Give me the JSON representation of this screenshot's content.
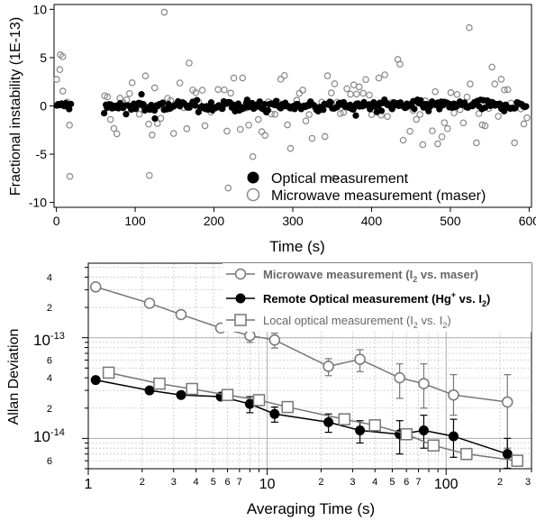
{
  "chart_data": [
    {
      "type": "scatter",
      "xlabel": "Time (s)",
      "ylabel": "Fractional instability (1E-13)",
      "xlim": [
        -3,
        603
      ],
      "ylim": [
        -10.5,
        10.5
      ],
      "x_ticks": [
        0,
        100,
        200,
        300,
        400,
        500,
        600
      ],
      "y_ticks": [
        -10,
        -5,
        0,
        5,
        10
      ],
      "grid": false,
      "legend_position": "bottom-right",
      "series": [
        {
          "name": "Optical measurement",
          "marker": "filled-circle",
          "color": "#000000",
          "segments": [
            [
              0,
              18
            ],
            [
              60,
              597
            ]
          ],
          "spacing_s": 2,
          "typical_spread": 0.5,
          "notable_points": [
            {
              "x": 108,
              "y": 1.2
            },
            {
              "x": 125,
              "y": -1.3
            },
            {
              "x": 380,
              "y": -1.0
            }
          ]
        },
        {
          "name": "Microwave measurement (maser)",
          "marker": "open-circle",
          "color": "#888888",
          "segments": [
            [
              0,
              18
            ],
            [
              60,
              597
            ]
          ],
          "spacing_s": 4,
          "typical_spread": 3.5,
          "notable_points": [
            {
              "x": 5,
              "y": 5.3
            },
            {
              "x": 8,
              "y": 5.1
            },
            {
              "x": 17,
              "y": -7.3
            },
            {
              "x": 118,
              "y": -7.2
            },
            {
              "x": 137,
              "y": 9.7
            },
            {
              "x": 218,
              "y": -8.5
            },
            {
              "x": 353,
              "y": -7.5
            },
            {
              "x": 524,
              "y": 8.1
            }
          ]
        }
      ]
    },
    {
      "type": "line",
      "xlabel": "Averaging Time (s)",
      "ylabel": "Allan Deviation",
      "x_scale": "log",
      "y_scale": "log",
      "xlim": [
        1,
        300
      ],
      "ylim": [
        5e-15,
        5.5e-13
      ],
      "x_major_ticks": [
        "1",
        "10",
        "100"
      ],
      "x_minor_ticks": [
        "2",
        "3",
        "4",
        "5",
        "6",
        "7",
        "2",
        "3",
        "4",
        "5",
        "6",
        "7",
        "2",
        "3"
      ],
      "y_major_ticks": [
        "10-13",
        "10-14"
      ],
      "y_minor_ticks": [
        "4",
        "2",
        "6",
        "4",
        "2",
        "6"
      ],
      "grid": true,
      "legend_position": "top-right",
      "series": [
        {
          "name": "Microwave measurement (I2 vs. maser)",
          "marker": "open-circle",
          "color": "#777777",
          "x": [
            1.1,
            2.2,
            3.3,
            5.5,
            8,
            11,
            22,
            33,
            55,
            75,
            110,
            220
          ],
          "y": [
            3.2e-13,
            2.2e-13,
            1.7e-13,
            1.25e-13,
            1.05e-13,
            9.5e-14,
            5.2e-14,
            6.1e-14,
            4e-14,
            3.5e-14,
            2.7e-14,
            2.3e-14
          ],
          "err_low": [
            null,
            null,
            null,
            null,
            1.5e-14,
            1.6e-14,
            1e-14,
            1.5e-14,
            1.5e-14,
            1.5e-14,
            1e-14,
            1.5e-14
          ],
          "err_high": [
            null,
            null,
            null,
            null,
            1.5e-14,
            1.6e-14,
            1e-14,
            1.5e-14,
            1.5e-14,
            2e-14,
            1.6e-14,
            2e-14
          ]
        },
        {
          "name": "Remote Optical measurement (Hg+ vs. I2)",
          "marker": "filled-circle",
          "color": "#000000",
          "x": [
            1.1,
            2.2,
            3.3,
            5.5,
            8,
            11,
            22,
            33,
            55,
            75,
            110,
            220
          ],
          "y": [
            3.8e-14,
            3e-14,
            2.7e-14,
            2.6e-14,
            2.2e-14,
            1.75e-14,
            1.45e-14,
            1.2e-14,
            1.1e-14,
            1.2e-14,
            1.05e-14,
            7e-15
          ],
          "err_low": [
            null,
            null,
            null,
            null,
            4e-15,
            3e-15,
            3e-15,
            3e-15,
            4e-15,
            4e-15,
            4e-15,
            2e-15
          ],
          "err_high": [
            null,
            null,
            null,
            null,
            4e-15,
            3e-15,
            3e-15,
            3e-15,
            4e-15,
            5e-15,
            5e-15,
            3e-15
          ]
        },
        {
          "name": "Local optical measurement (I2 vs. I2)",
          "marker": "open-square",
          "color": "#777777",
          "x": [
            1.3,
            2.5,
            3.8,
            6,
            9,
            13,
            27,
            40,
            60,
            85,
            130,
            250
          ],
          "y": [
            4.5e-14,
            3.5e-14,
            3.1e-14,
            2.7e-14,
            2.4e-14,
            2.05e-14,
            1.55e-14,
            1.35e-14,
            1.1e-14,
            8.5e-15,
            7e-15,
            6e-15
          ],
          "err_low": [
            null,
            null,
            null,
            null,
            null,
            null,
            null,
            null,
            null,
            null,
            null,
            null
          ],
          "err_high": [
            null,
            null,
            null,
            null,
            null,
            null,
            null,
            null,
            null,
            null,
            null,
            null
          ]
        }
      ]
    }
  ]
}
